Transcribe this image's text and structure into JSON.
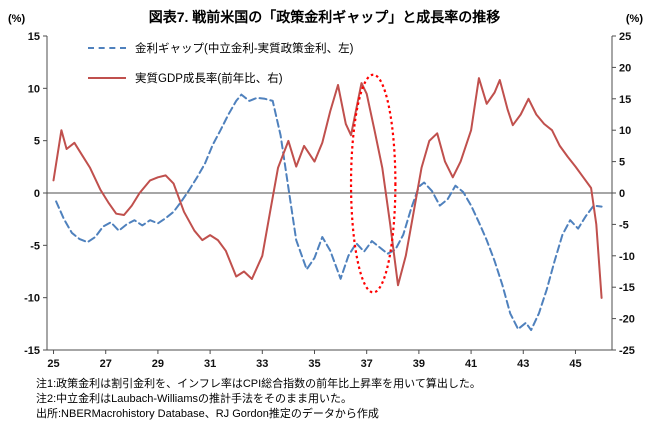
{
  "chart_data": {
    "type": "line",
    "title": "図表7. 戦前米国の「政策金利ギャップ」と成長率の推移",
    "left_axis": {
      "label": "(%)",
      "min": -15,
      "max": 15,
      "ticks": [
        15,
        10,
        5,
        0,
        -5,
        -10,
        -15
      ]
    },
    "right_axis": {
      "label": "(%)",
      "min": -25,
      "max": 25,
      "ticks": [
        25,
        20,
        15,
        10,
        5,
        0,
        -5,
        -10,
        -15,
        -20,
        -25
      ]
    },
    "x_axis": {
      "min": 1924.75,
      "max": 1946.4,
      "ticks": [
        1925,
        1927,
        1929,
        1931,
        1933,
        1935,
        1937,
        1939,
        1941,
        1943,
        1945
      ],
      "tick_labels": [
        "25",
        "27",
        "29",
        "31",
        "33",
        "35",
        "37",
        "39",
        "41",
        "43",
        "45"
      ]
    },
    "grid": "zero-line-only",
    "legend_position": "top-left-inside",
    "series": [
      {
        "name": "金利ギャップ(中立金利-実質政策金利、左)",
        "axis": "left",
        "color": "#4F81BD",
        "line_style": "dashed",
        "points": [
          [
            1925.1,
            -0.8
          ],
          [
            1925.4,
            -2.5
          ],
          [
            1925.7,
            -3.8
          ],
          [
            1926.0,
            -4.4
          ],
          [
            1926.3,
            -4.7
          ],
          [
            1926.6,
            -4.2
          ],
          [
            1926.9,
            -3.2
          ],
          [
            1927.2,
            -2.8
          ],
          [
            1927.5,
            -3.6
          ],
          [
            1927.8,
            -3.0
          ],
          [
            1928.1,
            -2.6
          ],
          [
            1928.4,
            -3.1
          ],
          [
            1928.7,
            -2.6
          ],
          [
            1929.0,
            -2.9
          ],
          [
            1929.3,
            -2.4
          ],
          [
            1929.6,
            -1.8
          ],
          [
            1929.9,
            -0.8
          ],
          [
            1930.2,
            0.3
          ],
          [
            1930.5,
            1.5
          ],
          [
            1930.8,
            2.8
          ],
          [
            1931.1,
            4.6
          ],
          [
            1931.4,
            6.0
          ],
          [
            1931.7,
            7.5
          ],
          [
            1932.0,
            8.8
          ],
          [
            1932.2,
            9.4
          ],
          [
            1932.5,
            8.8
          ],
          [
            1932.8,
            9.1
          ],
          [
            1933.1,
            9.0
          ],
          [
            1933.4,
            8.8
          ],
          [
            1933.7,
            5.5
          ],
          [
            1934.0,
            0.5
          ],
          [
            1934.3,
            -4.5
          ],
          [
            1934.7,
            -7.3
          ],
          [
            1935.0,
            -6.2
          ],
          [
            1935.3,
            -4.2
          ],
          [
            1935.6,
            -5.5
          ],
          [
            1936.0,
            -8.2
          ],
          [
            1936.3,
            -6.0
          ],
          [
            1936.6,
            -4.8
          ],
          [
            1936.9,
            -5.6
          ],
          [
            1937.2,
            -4.6
          ],
          [
            1937.5,
            -5.2
          ],
          [
            1937.8,
            -5.8
          ],
          [
            1938.1,
            -5.4
          ],
          [
            1938.4,
            -4.0
          ],
          [
            1938.7,
            -1.5
          ],
          [
            1939.0,
            0.6
          ],
          [
            1939.2,
            1.0
          ],
          [
            1939.5,
            0.2
          ],
          [
            1939.8,
            -1.2
          ],
          [
            1940.1,
            -0.6
          ],
          [
            1940.4,
            0.7
          ],
          [
            1940.7,
            0.1
          ],
          [
            1941.0,
            -1.2
          ],
          [
            1941.3,
            -2.8
          ],
          [
            1941.6,
            -4.5
          ],
          [
            1941.9,
            -6.5
          ],
          [
            1942.2,
            -8.8
          ],
          [
            1942.5,
            -11.5
          ],
          [
            1942.8,
            -13.0
          ],
          [
            1943.1,
            -12.4
          ],
          [
            1943.3,
            -13.1
          ],
          [
            1943.6,
            -11.5
          ],
          [
            1943.9,
            -9.2
          ],
          [
            1944.2,
            -6.5
          ],
          [
            1944.5,
            -4.0
          ],
          [
            1944.8,
            -2.6
          ],
          [
            1945.1,
            -3.4
          ],
          [
            1945.4,
            -2.2
          ],
          [
            1945.7,
            -1.2
          ],
          [
            1946.0,
            -1.3
          ]
        ]
      },
      {
        "name": "実質GDP成長率(前年比、右)",
        "axis": "right",
        "color": "#C0504D",
        "line_style": "solid",
        "points": [
          [
            1925.0,
            2.0
          ],
          [
            1925.3,
            10.0
          ],
          [
            1925.5,
            7.0
          ],
          [
            1925.8,
            8.0
          ],
          [
            1926.1,
            6.0
          ],
          [
            1926.4,
            4.0
          ],
          [
            1926.8,
            0.5
          ],
          [
            1927.1,
            -1.5
          ],
          [
            1927.4,
            -3.3
          ],
          [
            1927.7,
            -3.5
          ],
          [
            1928.0,
            -2.0
          ],
          [
            1928.3,
            0.0
          ],
          [
            1928.7,
            2.0
          ],
          [
            1929.0,
            2.5
          ],
          [
            1929.3,
            2.8
          ],
          [
            1929.6,
            1.5
          ],
          [
            1930.0,
            -3.0
          ],
          [
            1930.4,
            -6.0
          ],
          [
            1930.7,
            -7.5
          ],
          [
            1931.0,
            -6.7
          ],
          [
            1931.3,
            -7.5
          ],
          [
            1931.6,
            -9.2
          ],
          [
            1932.0,
            -13.3
          ],
          [
            1932.3,
            -12.5
          ],
          [
            1932.6,
            -13.7
          ],
          [
            1933.0,
            -10.0
          ],
          [
            1933.3,
            -3.0
          ],
          [
            1933.6,
            4.0
          ],
          [
            1934.0,
            8.3
          ],
          [
            1934.3,
            4.2
          ],
          [
            1934.6,
            7.5
          ],
          [
            1935.0,
            5.0
          ],
          [
            1935.3,
            8.0
          ],
          [
            1935.6,
            13.0
          ],
          [
            1935.9,
            17.2
          ],
          [
            1936.2,
            11.0
          ],
          [
            1936.4,
            9.2
          ],
          [
            1936.8,
            17.5
          ],
          [
            1937.0,
            15.8
          ],
          [
            1937.3,
            10.0
          ],
          [
            1937.6,
            4.0
          ],
          [
            1937.9,
            -5.0
          ],
          [
            1938.2,
            -14.7
          ],
          [
            1938.5,
            -10.0
          ],
          [
            1938.8,
            -3.0
          ],
          [
            1939.1,
            4.0
          ],
          [
            1939.4,
            8.3
          ],
          [
            1939.7,
            9.5
          ],
          [
            1940.0,
            5.0
          ],
          [
            1940.3,
            2.5
          ],
          [
            1940.6,
            5.0
          ],
          [
            1941.0,
            10.0
          ],
          [
            1941.3,
            18.3
          ],
          [
            1941.6,
            14.2
          ],
          [
            1941.9,
            16.0
          ],
          [
            1942.1,
            18.0
          ],
          [
            1942.4,
            13.3
          ],
          [
            1942.6,
            10.8
          ],
          [
            1942.9,
            12.5
          ],
          [
            1943.2,
            15.0
          ],
          [
            1943.5,
            12.5
          ],
          [
            1943.8,
            11.0
          ],
          [
            1944.1,
            10.0
          ],
          [
            1944.4,
            7.5
          ],
          [
            1944.7,
            5.8
          ],
          [
            1945.0,
            4.2
          ],
          [
            1945.3,
            2.5
          ],
          [
            1945.6,
            0.8
          ],
          [
            1945.8,
            -5.0
          ],
          [
            1946.0,
            -16.7
          ]
        ]
      }
    ],
    "annotation": {
      "shape": "ellipse",
      "color": "#FF0000",
      "line_style": "dotted",
      "x_center": 1937.25,
      "y_center": 0.9,
      "x_radius_years": 0.85,
      "y_radius": 10.4
    }
  },
  "notes": [
    "注1:政策金利は割引金利を、インフレ率はCPI総合指数の前年比上昇率を用いて算出した。",
    "注2:中立金利はLaubach-Williamsの推計手法をそのまま用いた。",
    "出所:NBERMacrohistory Database、RJ Gordon推定のデータから作成"
  ]
}
